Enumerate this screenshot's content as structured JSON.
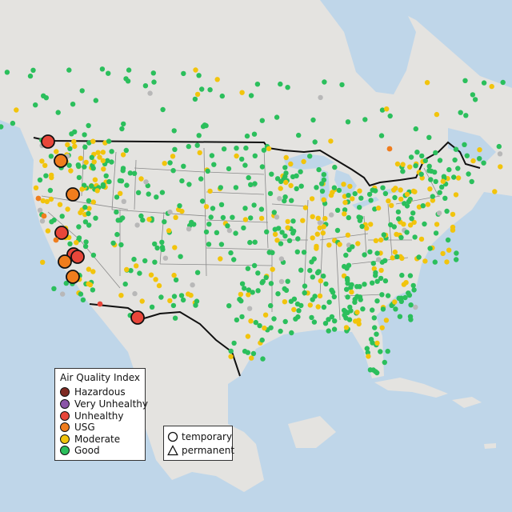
{
  "legend": {
    "title": "Air Quality Index",
    "items": [
      {
        "label": "Hazardous",
        "color": "#7e2a22"
      },
      {
        "label": "Very Unhealthy",
        "color": "#8b55a8"
      },
      {
        "label": "Unhealthy",
        "color": "#e8463a"
      },
      {
        "label": "USG",
        "color": "#f07d1d"
      },
      {
        "label": "Moderate",
        "color": "#f2c40c"
      },
      {
        "label": "Good",
        "color": "#2bbf5c"
      }
    ]
  },
  "shape_legend": {
    "items": [
      {
        "label": "temporary",
        "icon": "circle-icon"
      },
      {
        "label": "permanent",
        "icon": "triangle-icon"
      }
    ]
  },
  "colors": {
    "ocean": "#bfd6e9",
    "land": "#e4e3e0",
    "border": "#111111",
    "state_lines": "#8a8a8a",
    "no_data": "#b8b8b8"
  }
}
